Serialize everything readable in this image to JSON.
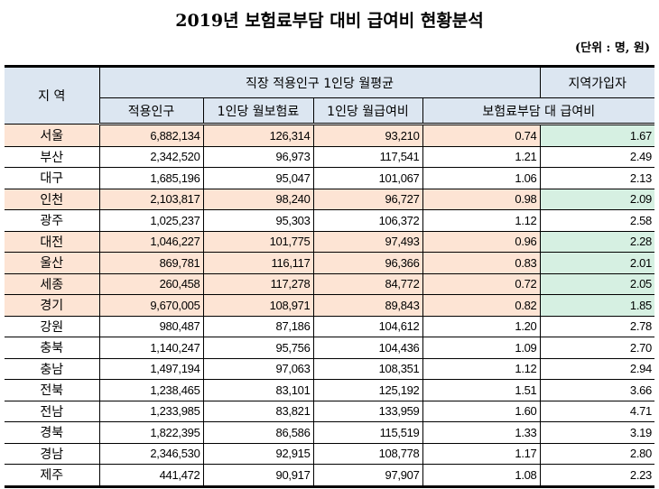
{
  "title": "2019년 보험료부담 대비 급여비 현황분석",
  "unit": "(단위 : 명, 원)",
  "headers": {
    "region": "지 역",
    "group": "직장 적용인구 1인당 월평균",
    "regional_group": "지역가입자",
    "cols": [
      "적용인구",
      "1인당 월보험료",
      "1인당 월급여비",
      "보험료부담 대 급여비"
    ]
  },
  "colors": {
    "header": "#dce6f1",
    "highlight": "#fde4d4",
    "highlight_last": "#d6f0e2"
  },
  "rows": [
    {
      "region": "서울",
      "pop": "6,882,134",
      "premium": "126,314",
      "benefit": "93,210",
      "ratio": "0.74",
      "regional": "1.67",
      "highlight": true
    },
    {
      "region": "부산",
      "pop": "2,342,520",
      "premium": "96,973",
      "benefit": "117,541",
      "ratio": "1.21",
      "regional": "2.49",
      "highlight": false
    },
    {
      "region": "대구",
      "pop": "1,685,196",
      "premium": "95,047",
      "benefit": "101,067",
      "ratio": "1.06",
      "regional": "2.13",
      "highlight": false
    },
    {
      "region": "인천",
      "pop": "2,103,817",
      "premium": "98,240",
      "benefit": "96,727",
      "ratio": "0.98",
      "regional": "2.09",
      "highlight": true
    },
    {
      "region": "광주",
      "pop": "1,025,237",
      "premium": "95,303",
      "benefit": "106,372",
      "ratio": "1.12",
      "regional": "2.58",
      "highlight": false
    },
    {
      "region": "대전",
      "pop": "1,046,227",
      "premium": "101,775",
      "benefit": "97,493",
      "ratio": "0.96",
      "regional": "2.28",
      "highlight": true
    },
    {
      "region": "울산",
      "pop": "869,781",
      "premium": "116,117",
      "benefit": "96,366",
      "ratio": "0.83",
      "regional": "2.01",
      "highlight": true
    },
    {
      "region": "세종",
      "pop": "260,458",
      "premium": "117,278",
      "benefit": "84,772",
      "ratio": "0.72",
      "regional": "2.05",
      "highlight": true
    },
    {
      "region": "경기",
      "pop": "9,670,005",
      "premium": "108,971",
      "benefit": "89,843",
      "ratio": "0.82",
      "regional": "1.85",
      "highlight": true
    },
    {
      "region": "강원",
      "pop": "980,487",
      "premium": "87,186",
      "benefit": "104,612",
      "ratio": "1.20",
      "regional": "2.78",
      "highlight": false
    },
    {
      "region": "충북",
      "pop": "1,140,247",
      "premium": "95,756",
      "benefit": "104,436",
      "ratio": "1.09",
      "regional": "2.70",
      "highlight": false
    },
    {
      "region": "충남",
      "pop": "1,497,194",
      "premium": "97,063",
      "benefit": "108,351",
      "ratio": "1.12",
      "regional": "2.94",
      "highlight": false
    },
    {
      "region": "전북",
      "pop": "1,238,465",
      "premium": "83,101",
      "benefit": "125,192",
      "ratio": "1.51",
      "regional": "3.66",
      "highlight": false
    },
    {
      "region": "전남",
      "pop": "1,233,985",
      "premium": "83,821",
      "benefit": "133,959",
      "ratio": "1.60",
      "regional": "4.71",
      "highlight": false
    },
    {
      "region": "경북",
      "pop": "1,822,395",
      "premium": "86,586",
      "benefit": "115,519",
      "ratio": "1.33",
      "regional": "3.19",
      "highlight": false
    },
    {
      "region": "경남",
      "pop": "2,346,530",
      "premium": "92,915",
      "benefit": "108,778",
      "ratio": "1.17",
      "regional": "2.80",
      "highlight": false
    },
    {
      "region": "제주",
      "pop": "441,472",
      "premium": "90,917",
      "benefit": "97,907",
      "ratio": "1.08",
      "regional": "2.23",
      "highlight": false
    }
  ]
}
